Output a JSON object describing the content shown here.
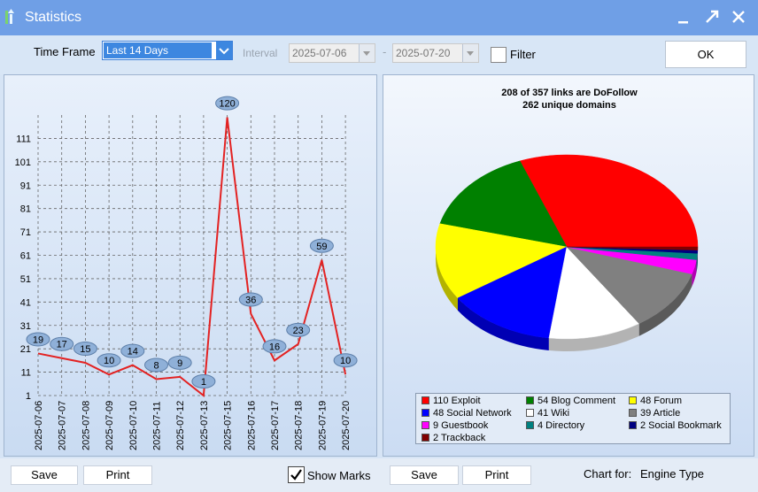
{
  "window": {
    "title": "Statistics"
  },
  "toolbar": {
    "time_frame_label": "Time Frame",
    "time_frame_value": "Last 14 Days",
    "interval_label": "Interval",
    "date_from": "2025-07-06",
    "date_to": "2025-07-20",
    "date_separator": "-",
    "filter_label": "Filter",
    "ok_label": "OK"
  },
  "line_chart": {
    "y_ticks": [
      "1",
      "11",
      "21",
      "31",
      "41",
      "51",
      "61",
      "71",
      "81",
      "91",
      "101",
      "111"
    ],
    "point_labels": [
      "19",
      "17",
      "15",
      "10",
      "14",
      "8",
      "9",
      "1",
      "120",
      "36",
      "16",
      "23",
      "59",
      "10"
    ]
  },
  "pie_chart": {
    "title_line1": "208 of 357 links are DoFollow",
    "title_line2": "262 unique domains",
    "legend": [
      {
        "label": "110 Exploit",
        "color": "#ff0000"
      },
      {
        "label": "54 Blog Comment",
        "color": "#008000"
      },
      {
        "label": "48 Forum",
        "color": "#ffff00"
      },
      {
        "label": "48 Social Network",
        "color": "#0000ff"
      },
      {
        "label": "41 Wiki",
        "color": "#ffffff"
      },
      {
        "label": "39 Article",
        "color": "#808080"
      },
      {
        "label": "9 Guestbook",
        "color": "#ff00ff"
      },
      {
        "label": "4 Directory",
        "color": "#008080"
      },
      {
        "label": "2 Social Bookmark",
        "color": "#000080"
      },
      {
        "label": "2 Trackback",
        "color": "#800000"
      }
    ]
  },
  "chart_data": [
    {
      "type": "line",
      "x": [
        "2025-07-06",
        "2025-07-07",
        "2025-07-08",
        "2025-07-09",
        "2025-07-10",
        "2025-07-11",
        "2025-07-12",
        "2025-07-13",
        "2025-07-15",
        "2025-07-16",
        "2025-07-17",
        "2025-07-18",
        "2025-07-19",
        "2025-07-20"
      ],
      "values": [
        19,
        17,
        15,
        10,
        14,
        8,
        9,
        1,
        120,
        36,
        16,
        23,
        59,
        10
      ],
      "ylim": [
        1,
        121
      ],
      "grid": true,
      "color": "#e32222"
    },
    {
      "type": "pie",
      "categories": [
        "Exploit",
        "Blog Comment",
        "Forum",
        "Social Network",
        "Wiki",
        "Article",
        "Guestbook",
        "Directory",
        "Social Bookmark",
        "Trackback"
      ],
      "values": [
        110,
        54,
        48,
        48,
        41,
        39,
        9,
        4,
        2,
        2
      ],
      "legend": "bottom"
    }
  ],
  "footer": {
    "save_label": "Save",
    "print_label": "Print",
    "show_marks_label": "Show Marks",
    "show_marks_checked": true,
    "chart_for_label": "Chart for:",
    "chart_for_value": "Engine Type"
  }
}
